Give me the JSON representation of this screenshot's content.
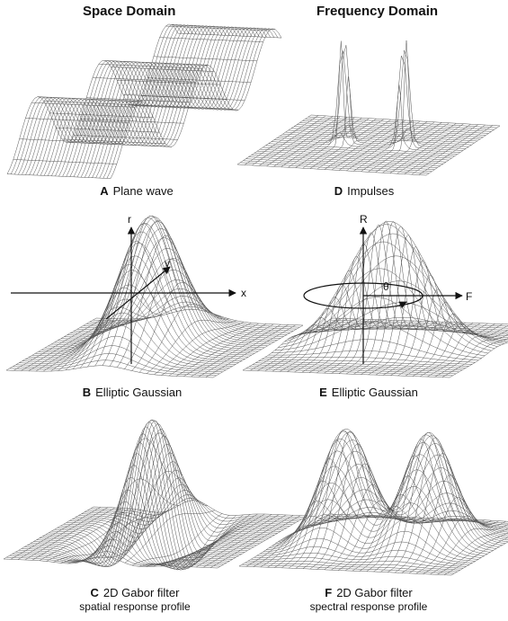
{
  "headers": {
    "space": "Space Domain",
    "frequency": "Frequency Domain"
  },
  "panels": [
    {
      "letter": "A",
      "label": "Plane wave",
      "sub": ""
    },
    {
      "letter": "D",
      "label": "Impulses",
      "sub": ""
    },
    {
      "letter": "B",
      "label": "Elliptic Gaussian",
      "sub": ""
    },
    {
      "letter": "E",
      "label": "Elliptic Gaussian",
      "sub": ""
    },
    {
      "letter": "C",
      "label": "2D Gabor filter",
      "sub": "spatial response profile"
    },
    {
      "letter": "F",
      "label": "2D Gabor filter",
      "sub": "spectral response profile"
    }
  ],
  "axes": {
    "b": {
      "vertical": "r",
      "horizontal": "x",
      "diagonal": "y"
    },
    "e": {
      "vertical": "R",
      "horizontal": "F",
      "angle": "θ"
    }
  }
}
